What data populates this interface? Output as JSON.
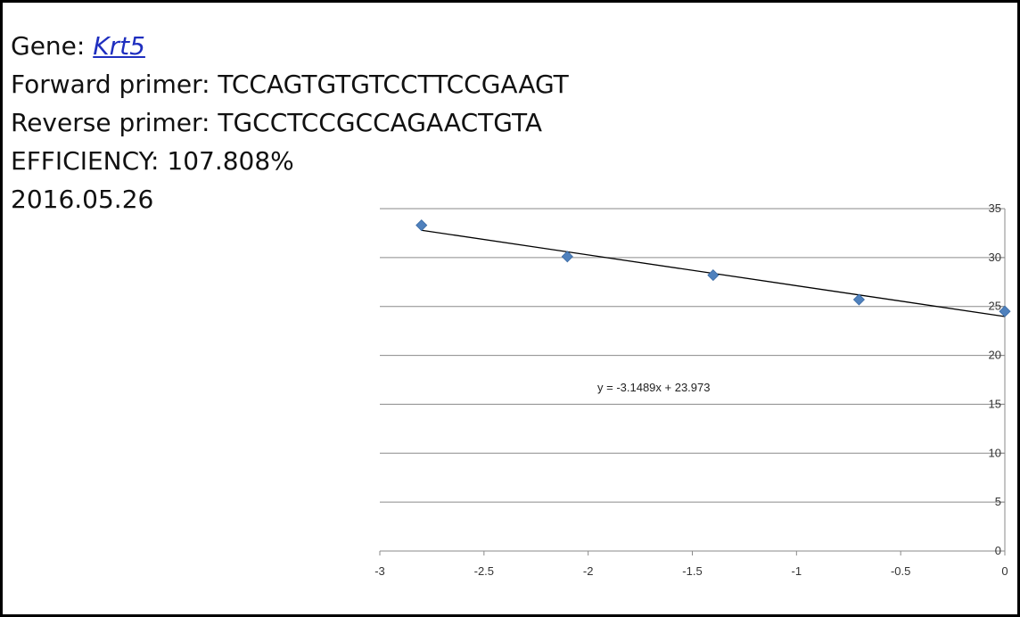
{
  "info": {
    "gene_label": "Gene: ",
    "gene_name": "Krt5",
    "forward_primer": "Forward primer: TCCAGTGTGTCCTTCCGAAGT",
    "reverse_primer": "Reverse primer: TGCCTCCGCCAGAACTGTA",
    "efficiency": "EFFICIENCY: 107.808%",
    "date": "2016.05.26"
  },
  "chart_data": {
    "type": "scatter",
    "title": "",
    "xlabel": "",
    "ylabel": "",
    "xlim": [
      -3,
      0
    ],
    "ylim": [
      0,
      35
    ],
    "x_ticks": [
      -3,
      -2.5,
      -2,
      -1.5,
      -1,
      -0.5,
      0
    ],
    "y_ticks": [
      0,
      5,
      10,
      15,
      20,
      25,
      30,
      35
    ],
    "grid": "horizontal",
    "y_axis_side": "right",
    "legend": "none",
    "marker_color": "#4f81bd",
    "trendline_color": "#000000",
    "points": [
      {
        "x": -2.8,
        "y": 33.3
      },
      {
        "x": -2.1,
        "y": 30.1
      },
      {
        "x": -1.4,
        "y": 28.2
      },
      {
        "x": -0.7,
        "y": 25.7
      },
      {
        "x": 0,
        "y": 24.5
      }
    ],
    "trendline": {
      "slope": -3.1489,
      "intercept": 23.973,
      "x_start": -2.8,
      "x_end": 0,
      "equation": "y = -3.1489x + 23.973"
    }
  }
}
